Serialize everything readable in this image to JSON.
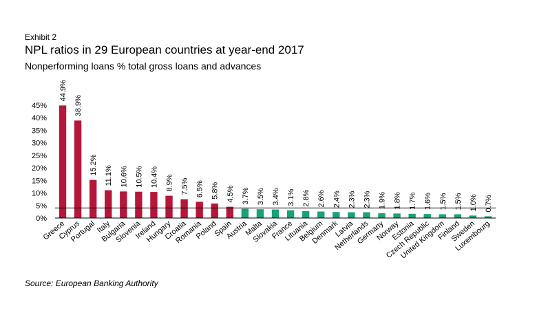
{
  "header": {
    "exhibit": "Exhibit 2",
    "title": "NPL ratios in 29 European countries at year-end 2017",
    "subtitle": "Nonperforming loans % total gross loans and advances"
  },
  "footer": {
    "source": "Source: European Banking Authority"
  },
  "colors": {
    "above": "#b5173a",
    "below": "#1aa07a"
  },
  "chart_data": {
    "type": "bar",
    "categories": [
      "Greece",
      "Cyprus",
      "Portugal",
      "Italy",
      "Bulgaria",
      "Slovenia",
      "Ireland",
      "Hungary",
      "Croatia",
      "Romania",
      "Poland",
      "Spain",
      "Austria",
      "Malta",
      "Slovakia",
      "France",
      "Lituania",
      "Belgium",
      "Denmark",
      "Latvia",
      "Netherlands",
      "Germany",
      "Norway",
      "Estonia",
      "Czech Republic",
      "United Kingdom",
      "Finland",
      "Sweden",
      "Luxembourg"
    ],
    "values": [
      44.9,
      38.9,
      15.2,
      11.1,
      10.6,
      10.5,
      10.4,
      8.9,
      7.5,
      6.5,
      5.8,
      4.5,
      3.7,
      3.5,
      3.4,
      3.1,
      2.8,
      2.6,
      2.4,
      2.3,
      2.3,
      1.9,
      1.8,
      1.7,
      1.6,
      1.5,
      1.5,
      1.0,
      0.7
    ],
    "data_labels": [
      "44.9%",
      "38.9%",
      "15.2%",
      "11.1%",
      "10.6%",
      "10.5%",
      "10.4%",
      "8.9%",
      "7.5%",
      "6.5%",
      "5.8%",
      "4.5%",
      "3.7%",
      "3.5%",
      "3.4%",
      "3.1%",
      "2.8%",
      "2.6%",
      "2.4%",
      "2.3%",
      "2.3%",
      "1.9%",
      "1.8%",
      "1.7%",
      "1.6%",
      "1.5%",
      "1.5%",
      "1.0%",
      "0.7%"
    ],
    "yticks": [
      0,
      5,
      10,
      15,
      20,
      25,
      30,
      35,
      40,
      45
    ],
    "ytick_labels": [
      "0%",
      "5%",
      "10%",
      "15%",
      "20%",
      "25%",
      "30%",
      "35%",
      "40%",
      "45%"
    ],
    "ylim": [
      0,
      45
    ],
    "reference_line": 4,
    "grid": false,
    "legend": "none"
  }
}
